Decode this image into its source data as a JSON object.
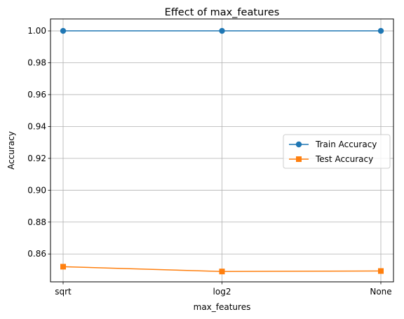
{
  "chart_data": {
    "type": "line",
    "title": "Effect of max_features",
    "xlabel": "max_features",
    "ylabel": "Accuracy",
    "categories": [
      "sqrt",
      "log2",
      "None"
    ],
    "ylim": [
      0.8425,
      1.0075
    ],
    "yticks": [
      0.86,
      0.88,
      0.9,
      0.92,
      0.94,
      0.96,
      0.98,
      1.0
    ],
    "ytick_labels": [
      "0.86",
      "0.88",
      "0.90",
      "0.92",
      "0.94",
      "0.96",
      "0.98",
      "1.00"
    ],
    "grid": true,
    "legend_position": "center-right",
    "series": [
      {
        "name": "Train Accuracy",
        "values": [
          1.0,
          1.0,
          1.0
        ],
        "color": "#1f77b4",
        "marker": "circle"
      },
      {
        "name": "Test Accuracy",
        "values": [
          0.852,
          0.849,
          0.8493
        ],
        "color": "#ff7f0e",
        "marker": "square"
      }
    ]
  }
}
